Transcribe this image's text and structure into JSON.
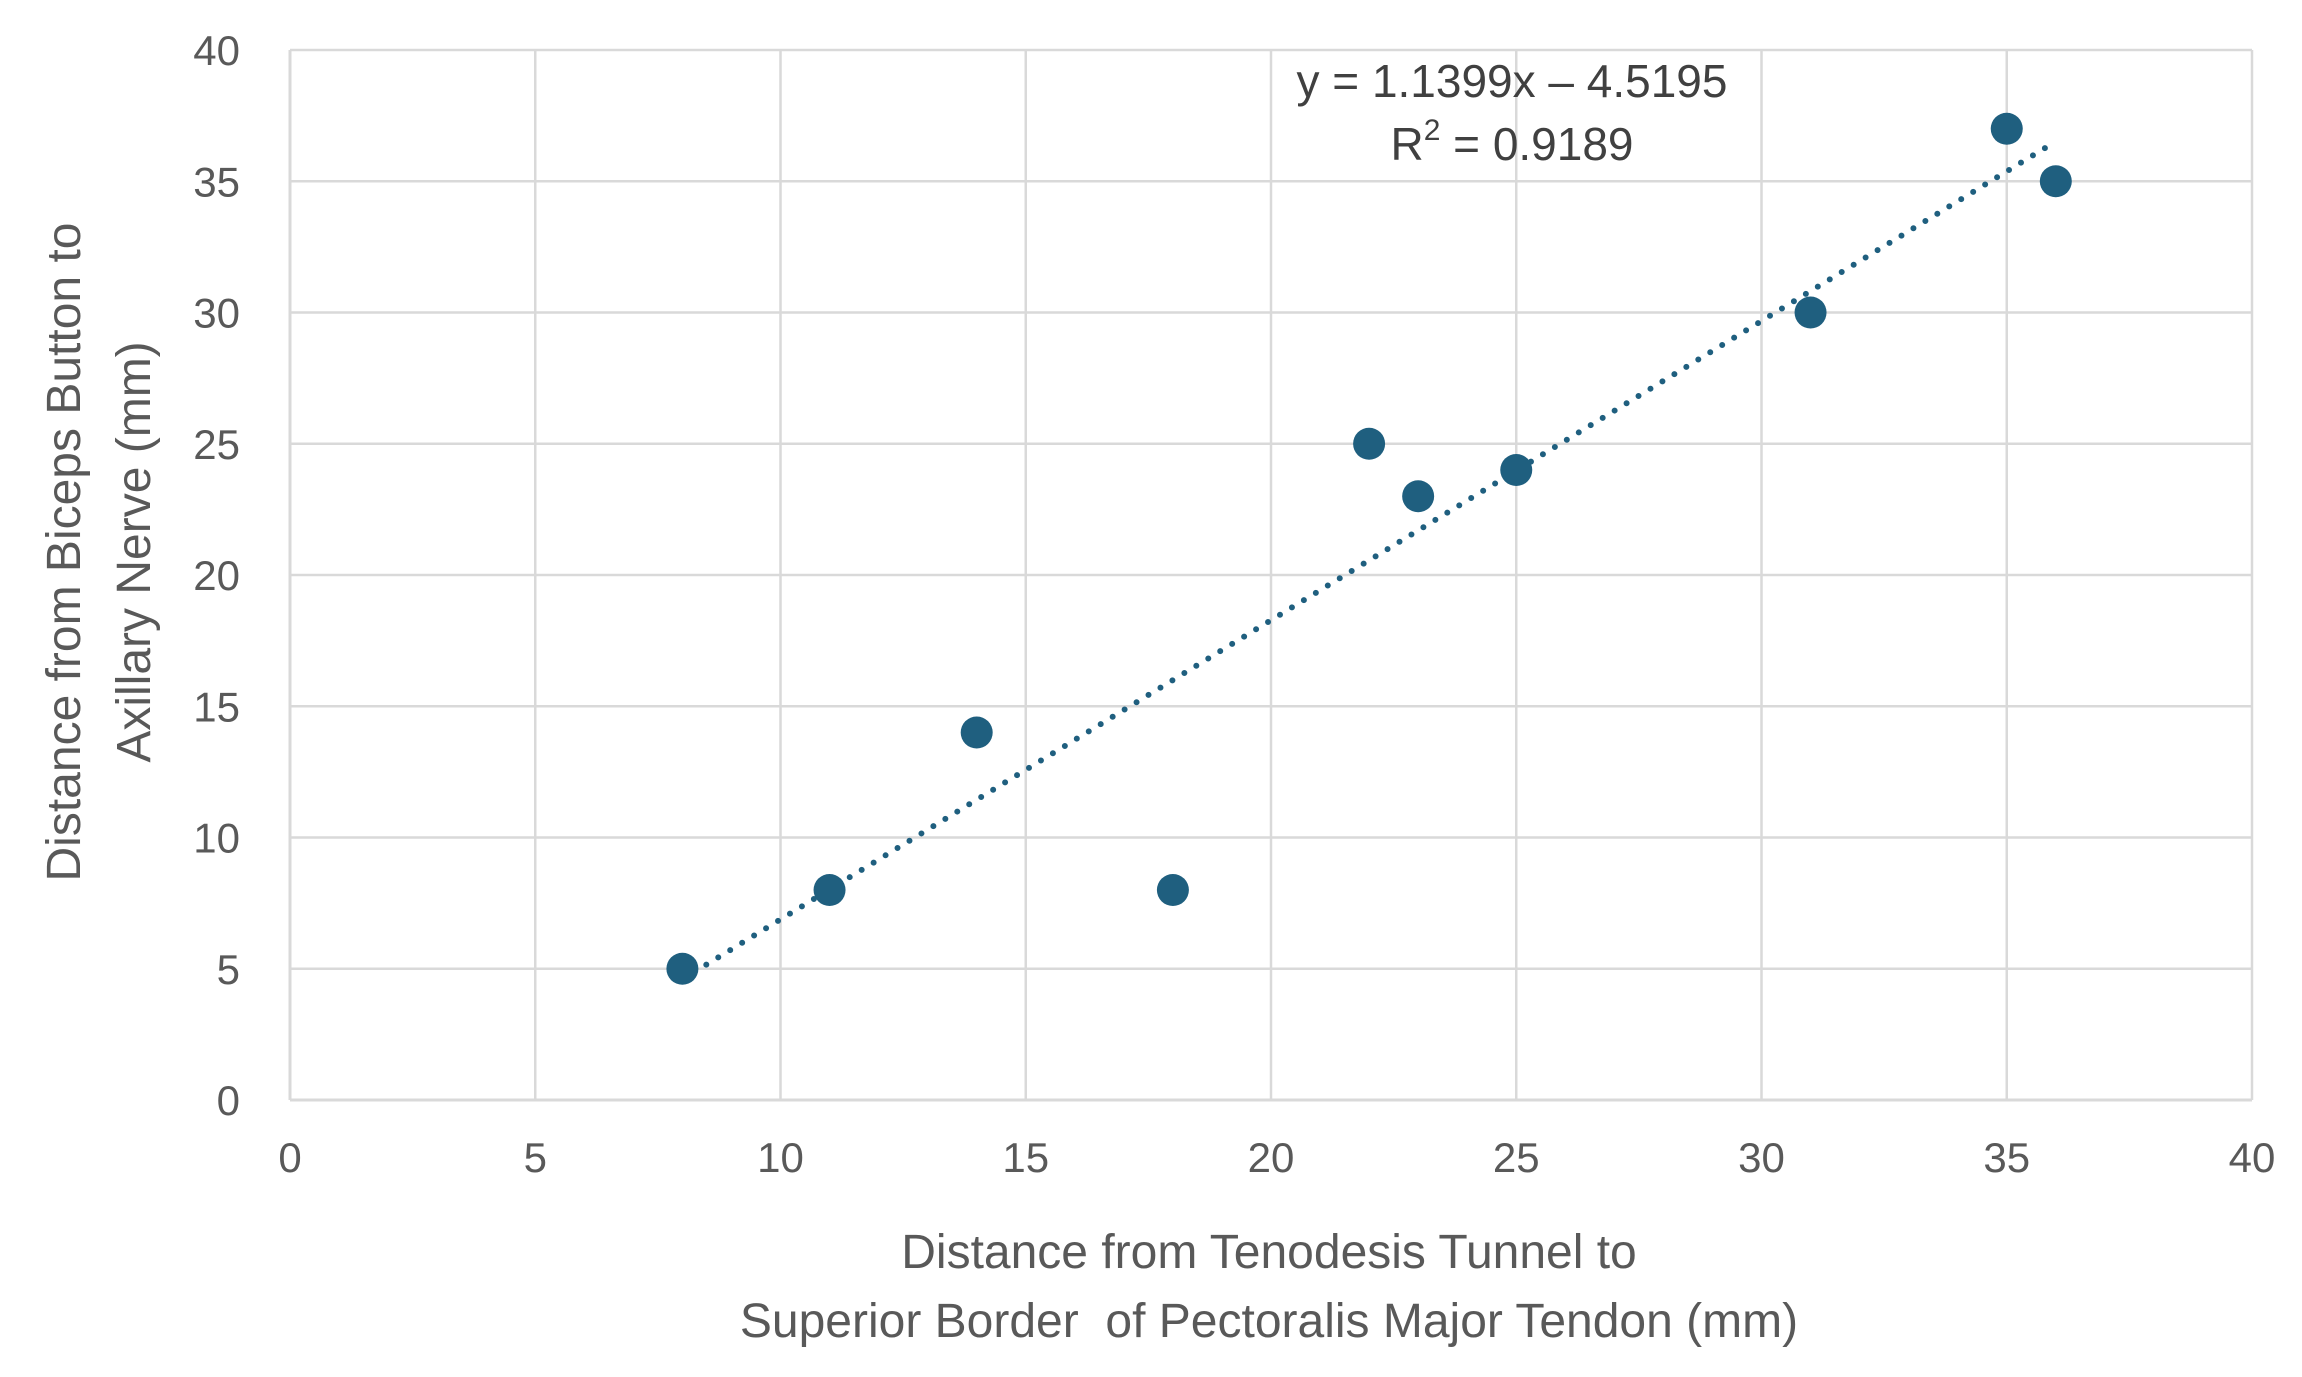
{
  "chart_data": {
    "type": "scatter",
    "title": "",
    "xlabel": [
      "Distance from Tenodesis Tunnel to",
      "Superior Border  of Pectoralis Major Tendon (mm)"
    ],
    "ylabel": [
      "Distance from Biceps Button to",
      "Axillary Nerve (mm)"
    ],
    "xlim": [
      0,
      40
    ],
    "ylim": [
      0,
      40
    ],
    "xticks": [
      0,
      5,
      10,
      15,
      20,
      25,
      30,
      35,
      40
    ],
    "yticks": [
      0,
      5,
      10,
      15,
      20,
      25,
      30,
      35,
      40
    ],
    "grid": true,
    "legend": "none",
    "series": [
      {
        "color": "#1f5f7f",
        "points": [
          {
            "x": 8,
            "y": 5
          },
          {
            "x": 11,
            "y": 8
          },
          {
            "x": 14,
            "y": 14
          },
          {
            "x": 18,
            "y": 8
          },
          {
            "x": 22,
            "y": 25
          },
          {
            "x": 23,
            "y": 23
          },
          {
            "x": 25,
            "y": 24
          },
          {
            "x": 31,
            "y": 30
          },
          {
            "x": 35,
            "y": 37
          },
          {
            "x": 36,
            "y": 35
          }
        ]
      }
    ],
    "trendline": {
      "type": "linear",
      "slope": 1.1399,
      "intercept": -4.5195,
      "x_range": [
        8,
        36
      ],
      "style": "dotted",
      "color": "#1f5f7f",
      "equation_label": "y = 1.1399x – 4.5195",
      "r2_prefix": "R",
      "r2_superscript": "2",
      "r2_value": " = 0.9189"
    }
  }
}
